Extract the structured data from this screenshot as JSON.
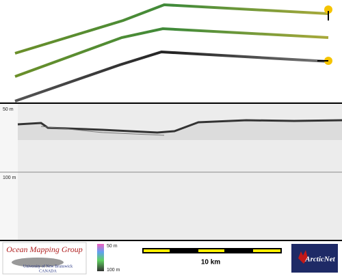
{
  "profile": {
    "depth_labels": [
      "50 m",
      "100 m"
    ]
  },
  "footer": {
    "logo": {
      "title": "Ocean Mapping Group",
      "subtitle": "University of New Brunswick",
      "country": "CANADA"
    },
    "color_scale": {
      "top": "50 m",
      "bottom": "100 m"
    },
    "scale_bar": {
      "label": "10 km"
    },
    "partner": "ArcticNet"
  }
}
